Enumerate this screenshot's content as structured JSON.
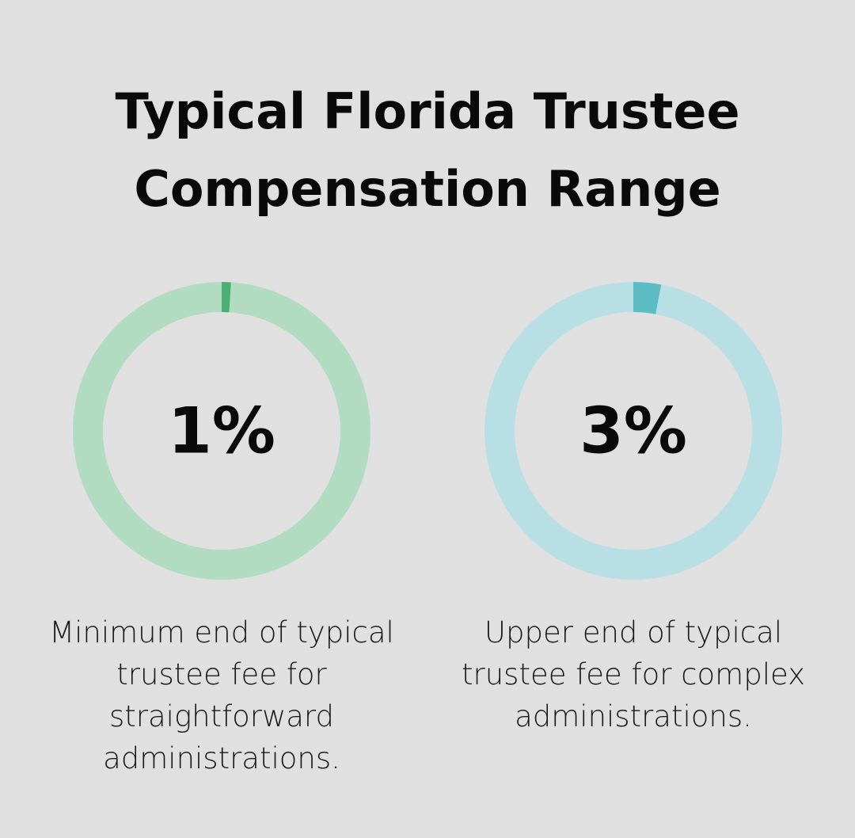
{
  "title": "Typical Florida Trustee Compensation Range",
  "chart_data": [
    {
      "type": "donut",
      "values": [
        1
      ],
      "value_labels": [
        "1%"
      ],
      "color": "#4caf72",
      "track_color": "#b2dcc2",
      "caption": "Minimum end of typical trustee fee for straightforward administrations."
    },
    {
      "type": "donut",
      "values": [
        3
      ],
      "value_labels": [
        "3%"
      ],
      "color": "#5bbcc4",
      "track_color": "#b8e0e4",
      "caption": "Upper end of typical trustee fee for complex administrations."
    }
  ]
}
